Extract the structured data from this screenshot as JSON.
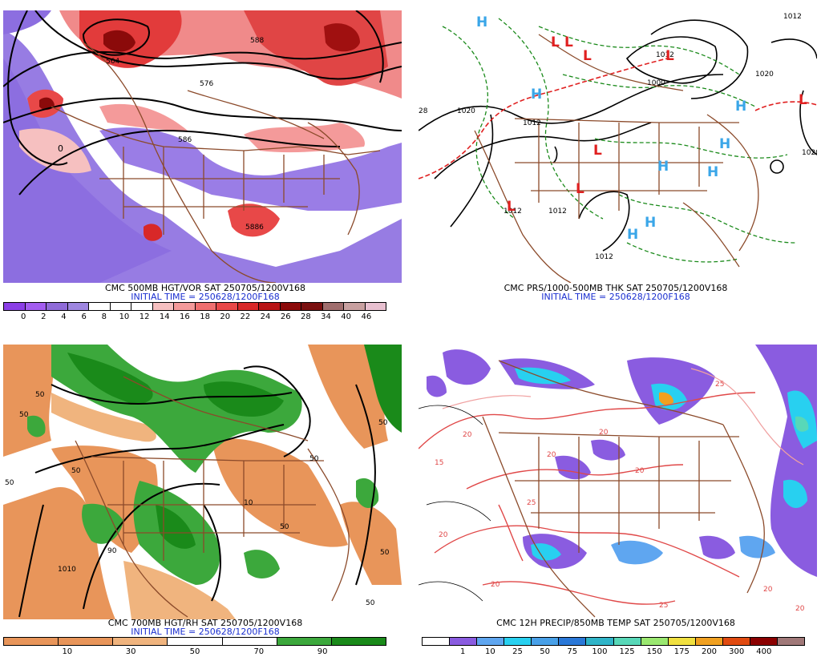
{
  "panels": [
    {
      "id": "p500",
      "title_line1": "CMC 500MB HGT/VOR SAT 250705/1200V168",
      "title_line2": "INITIAL TIME = 250628/1200F168",
      "colorbar": {
        "colors": [
          "#8b3fe6",
          "#a35df0",
          "#8f6bd8",
          "#9e86e0",
          "#ffffff",
          "#ffffff",
          "#ffffff",
          "#f6c0c0",
          "#f49a9a",
          "#ef6f6f",
          "#e84848",
          "#d82828",
          "#b81414",
          "#8b0a0a",
          "#7a1010",
          "#a06e6e",
          "#c8a0a0",
          "#e8c0d0"
        ],
        "labels": [
          "0",
          "2",
          "4",
          "6",
          "8",
          "10",
          "12",
          "14",
          "16",
          "18",
          "20",
          "22",
          "24",
          "26",
          "28",
          "34",
          "40",
          "46"
        ]
      },
      "map_labels": [
        "564",
        "576",
        "586",
        "5886",
        "0",
        "588"
      ]
    },
    {
      "id": "pprs",
      "title_line1": "CMC PRS/1000-500MB THK SAT 250705/1200V168",
      "title_line2": "INITIAL TIME = 250628/1200F168",
      "map_labels": [
        "1012",
        "1012",
        "1020",
        "1020",
        "1000",
        "1012",
        "1012",
        "1012",
        "1020",
        "28",
        "1012"
      ],
      "centers": [
        {
          "type": "H"
        },
        {
          "type": "L"
        },
        {
          "type": "L"
        },
        {
          "type": "L"
        },
        {
          "type": "L"
        },
        {
          "type": "H"
        },
        {
          "type": "H"
        },
        {
          "type": "L"
        },
        {
          "type": "H"
        },
        {
          "type": "H"
        },
        {
          "type": "L"
        },
        {
          "type": "H"
        },
        {
          "type": "H"
        },
        {
          "type": "L"
        },
        {
          "type": "H"
        },
        {
          "type": "L"
        }
      ]
    },
    {
      "id": "p700",
      "title_line1": "CMC 700MB HGT/RH SAT 250705/1200V168",
      "title_line2": "INITIAL TIME = 250628/1200F168",
      "colorbar": {
        "colors": [
          "#e8955a",
          "#e8955a",
          "#f0b47e",
          "#ffffff",
          "#ffffff",
          "#3ca83c",
          "#1a8a1a"
        ],
        "labels": [
          "10",
          "30",
          "50",
          "70",
          "90"
        ]
      },
      "map_labels": [
        "50",
        "50",
        "50",
        "1010",
        "50",
        "50",
        "50",
        "50",
        "90",
        "10",
        "50",
        "50"
      ]
    },
    {
      "id": "pprecip",
      "title_line1": "CMC 12H PRECIP/850MB TEMP SAT 250705/1200V168",
      "title_line2": "",
      "colorbar": {
        "colors": [
          "#ffffff",
          "#8a5ce0",
          "#5fa6f0",
          "#28d0f0",
          "#48a0e8",
          "#2a78d8",
          "#2fb4c8",
          "#58d8b8",
          "#9ae870",
          "#f0e040",
          "#f0a020",
          "#e04a10",
          "#8b0000",
          "#a07878"
        ],
        "labels": [
          "1",
          "10",
          "25",
          "50",
          "75",
          "100",
          "125",
          "150",
          "175",
          "200",
          "300",
          "400"
        ]
      },
      "map_labels": [
        "20",
        "25",
        "20",
        "20",
        "25",
        "20",
        "20",
        "20",
        "25",
        "15",
        "20",
        "20"
      ]
    }
  ]
}
